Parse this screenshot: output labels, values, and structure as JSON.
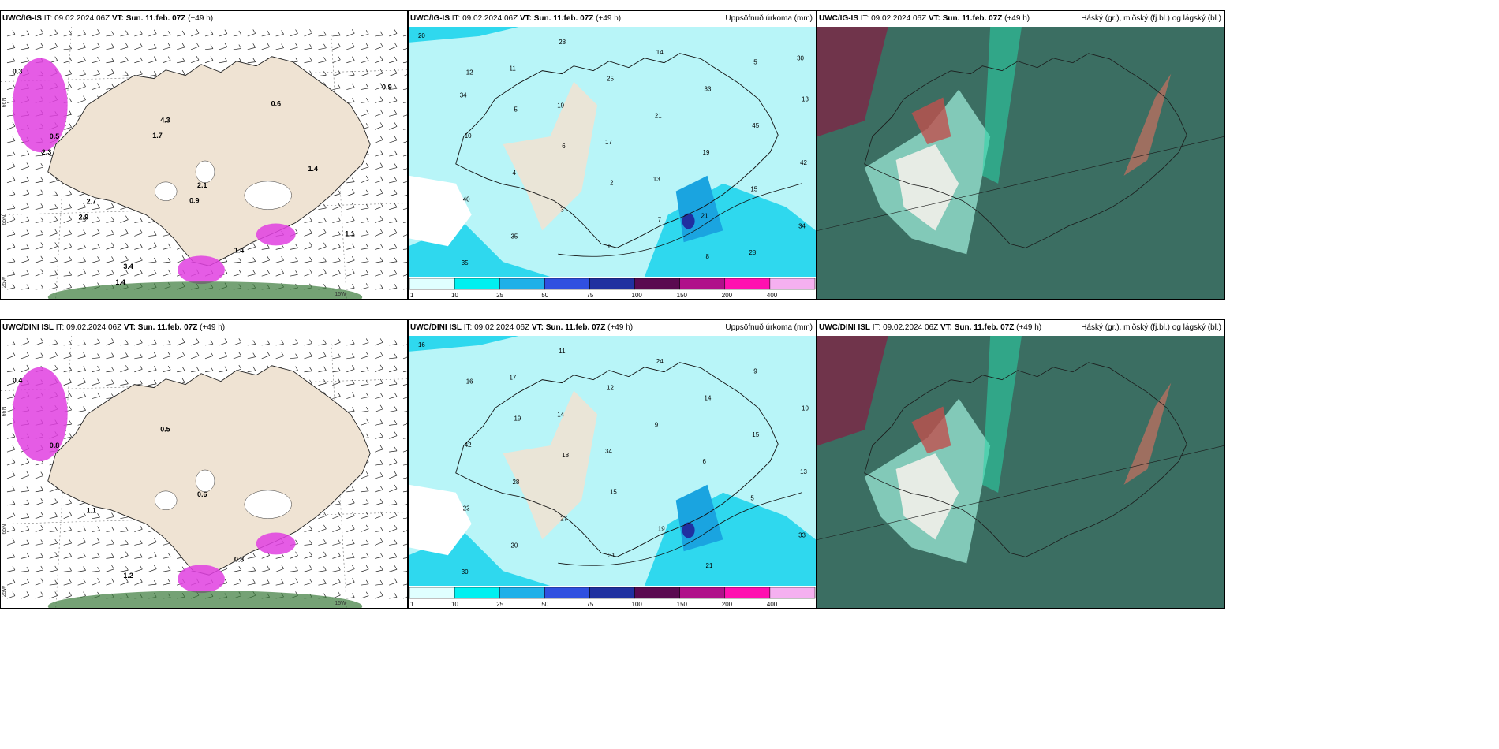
{
  "panels": [
    {
      "model": "UWC/IG-IS",
      "it": "09.02.2024 06Z",
      "vt": "Sun. 11.feb. 07Z",
      "lead": "(+49 h)",
      "right": "",
      "kind": "wind"
    },
    {
      "model": "UWC/IG-IS",
      "it": "09.02.2024 06Z",
      "vt": "Sun. 11.feb. 07Z",
      "lead": "(+49 h)",
      "right": "Uppsöfnuð úrkoma (mm)",
      "kind": "precip"
    },
    {
      "model": "UWC/IG-IS",
      "it": "09.02.2024 06Z",
      "vt": "Sun. 11.feb. 07Z",
      "lead": "(+49 h)",
      "right": "Háský (gr.), miðský (fj.bl.) og lágský (bl.)",
      "kind": "cloud"
    },
    {
      "model": "UWC/DINI ISL",
      "it": "09.02.2024 06Z",
      "vt": "Sun. 11.feb. 07Z",
      "lead": "(+49 h)",
      "right": "",
      "kind": "wind"
    },
    {
      "model": "UWC/DINI ISL",
      "it": "09.02.2024 06Z",
      "vt": "Sun. 11.feb. 07Z",
      "lead": "(+49 h)",
      "right": "Uppsöfnuð úrkoma (mm)",
      "kind": "precip"
    },
    {
      "model": "UWC/DINI ISL",
      "it": "09.02.2024 06Z",
      "vt": "Sun. 11.feb. 07Z",
      "lead": "(+49 h)",
      "right": "Háský (gr.), miðský (fj.bl.) og lágský (bl.)",
      "kind": "cloud"
    }
  ],
  "labels": {
    "it": "IT:",
    "vt": "VT:",
    "lat66": "66N",
    "lat65": "65N",
    "lon25": "25W",
    "lon15": "15W"
  },
  "colorbar": {
    "ticks": [
      "1",
      "10",
      "25",
      "50",
      "75",
      "100",
      "150",
      "200",
      "400"
    ],
    "colors": [
      "#e0ffff",
      "#00f0f0",
      "#1fb0e8",
      "#3050e0",
      "#2030a0",
      "#5a0a50",
      "#b0108a",
      "#ff10b0",
      "#f5b0f0"
    ]
  },
  "colors": {
    "land": "#efe3d3",
    "sea": "#ffffff",
    "precip_light": "#b8f5f8",
    "precip_mid": "#2fd8ee",
    "precip_heavy": "#1aa4e0",
    "cloud_base": "#3b6e62",
    "cloud_hi": "#2ad6a8",
    "snow": "#e040e0"
  },
  "wind_values_top": [
    "0.3",
    "0.5",
    "2.7",
    "3.4",
    "4.3",
    "2.1",
    "1.4",
    "0.6",
    "1.4",
    "1.1",
    "0.9",
    "2.3",
    "2.9",
    "1.4",
    "1.7",
    "0.9"
  ],
  "wind_values_bottom": [
    "0.4",
    "0.8",
    "1.1",
    "1.2",
    "0.5",
    "0.6",
    "0.8"
  ],
  "precip_values_top": [
    "20",
    "12",
    "5",
    "6",
    "2",
    "7",
    "8",
    "5",
    "13",
    "10",
    "4",
    "3",
    "6",
    "14",
    "33",
    "45",
    "42",
    "40",
    "35",
    "28",
    "25",
    "21",
    "19",
    "15",
    "34",
    "35",
    "11",
    "19",
    "17",
    "13",
    "21",
    "28",
    "30",
    "34"
  ],
  "precip_values_bottom": [
    "16",
    "16",
    "19",
    "18",
    "15",
    "19",
    "21",
    "9",
    "10",
    "42",
    "28",
    "27",
    "31",
    "24",
    "14",
    "15",
    "13",
    "23",
    "20",
    "11",
    "12",
    "9",
    "6",
    "5",
    "33",
    "30",
    "17",
    "14",
    "34"
  ]
}
